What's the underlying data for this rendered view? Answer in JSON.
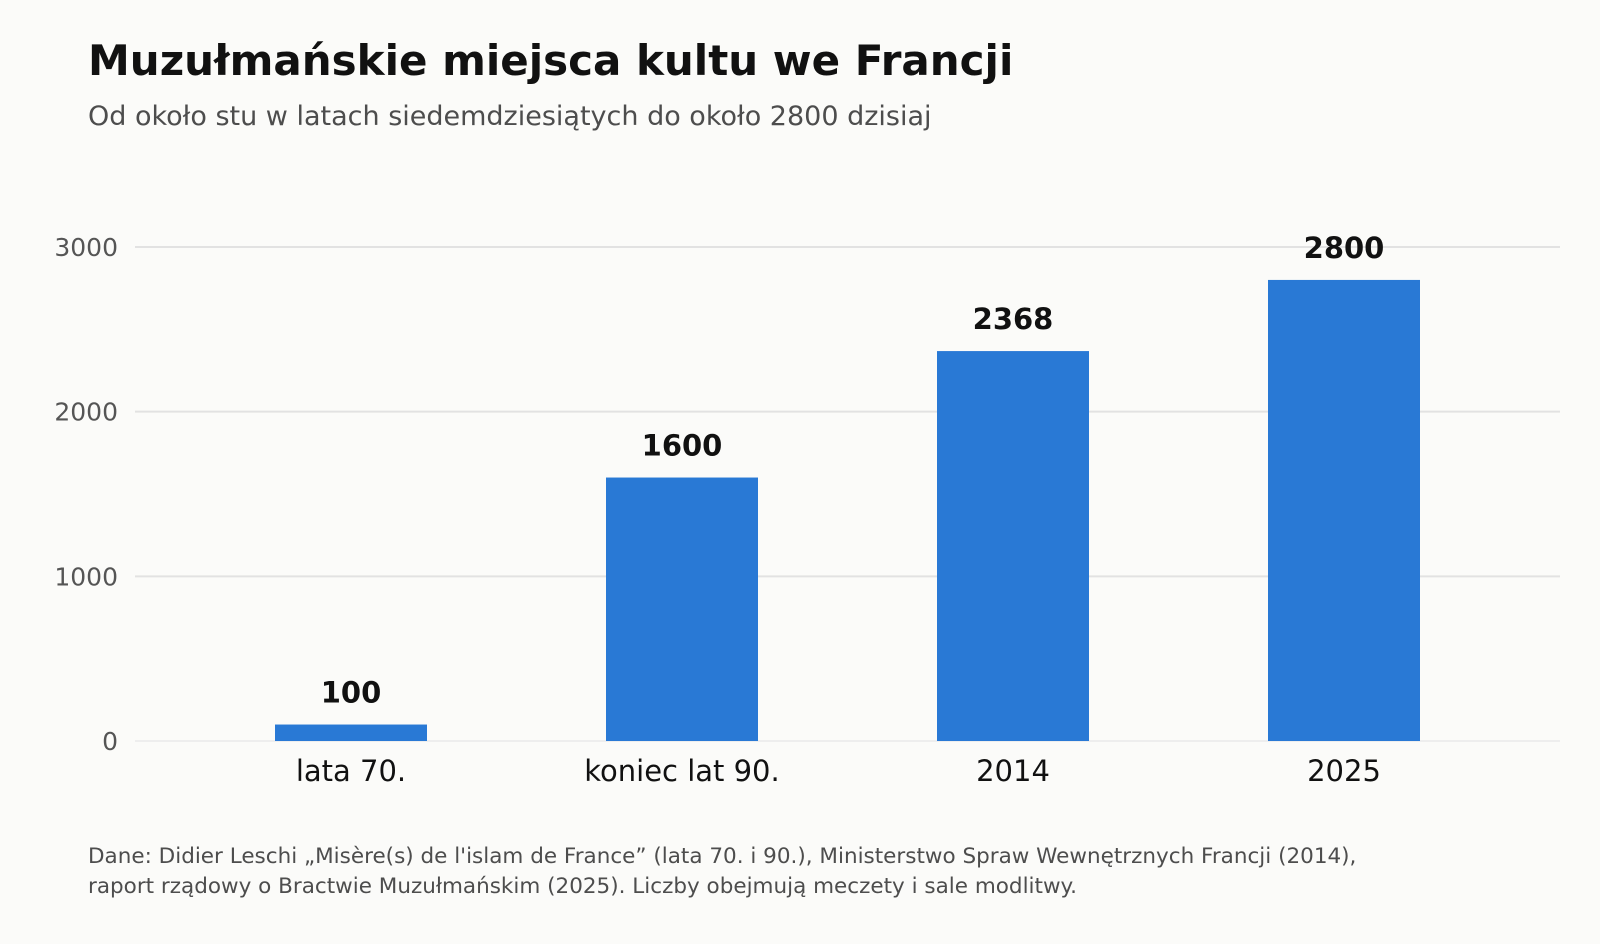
{
  "title": "Muzułmańskie miejsca kultu we Francji",
  "subtitle": "Od około stu w latach siedemdziesiątych do około 2800 dzisiaj",
  "footer": {
    "line1": "Dane: Didier Leschi „Misère(s) de l'islam de France” (lata 70. i 90.), Ministerstwo Spraw Wewnętrznych Francji (2014),",
    "line2": "raport rządowy o Bractwie Muzułmańskim (2025). Liczby obejmują meczety i sale modlitwy."
  },
  "colors": {
    "bar": "#2979d5",
    "grid": "#e2e2e2",
    "tick_text": "#555555",
    "category_text": "#111111",
    "value_text": "#111111"
  },
  "chart_data": {
    "type": "bar",
    "categories": [
      "lata 70.",
      "koniec lat 90.",
      "2014",
      "2025"
    ],
    "values": [
      100,
      1600,
      2368,
      2800
    ],
    "value_labels": [
      "100",
      "1600",
      "2368",
      "2800"
    ],
    "yticks": [
      0,
      1000,
      2000,
      3000
    ],
    "ylim": [
      0,
      3000
    ],
    "grid": true,
    "legend": "none"
  }
}
